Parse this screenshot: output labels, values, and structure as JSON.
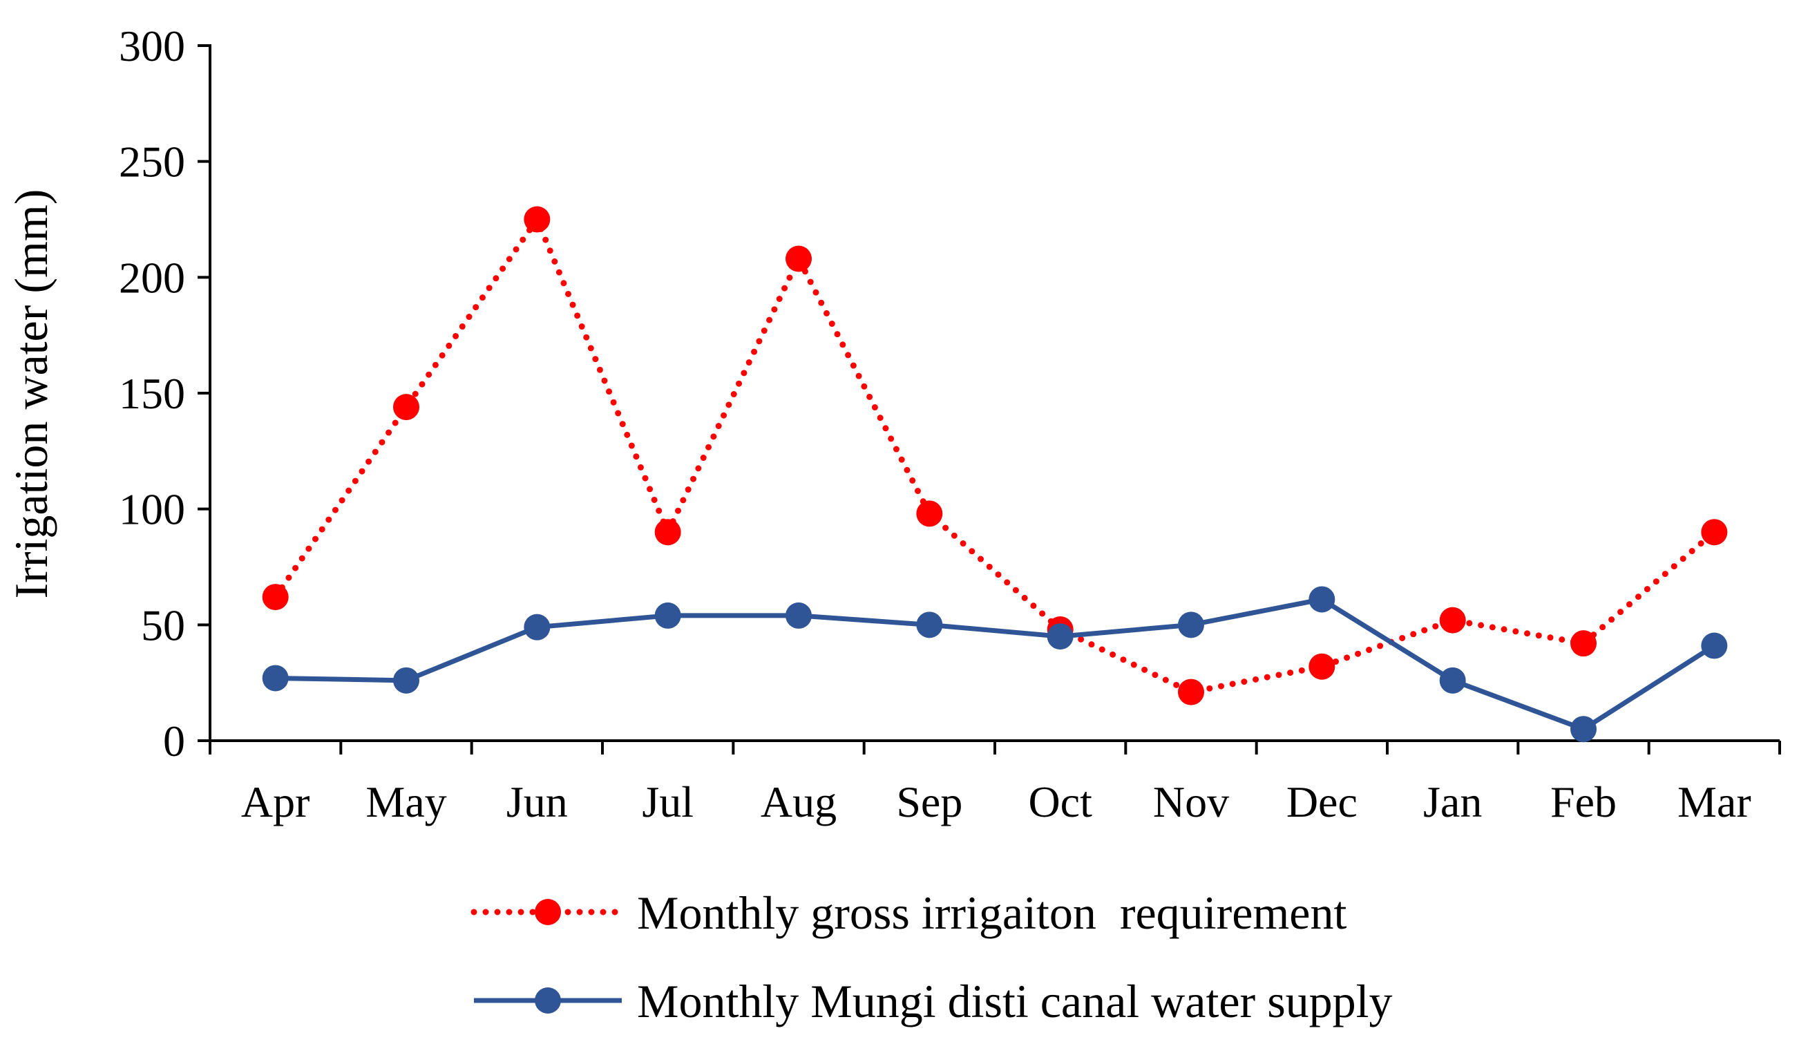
{
  "chart_data": {
    "type": "line",
    "title": "",
    "xlabel": "",
    "ylabel": "Irrigation water (mm)",
    "ylim": [
      0,
      300
    ],
    "yticks": [
      0,
      50,
      100,
      150,
      200,
      250,
      300
    ],
    "categories": [
      "Apr",
      "May",
      "Jun",
      "Jul",
      "Aug",
      "Sep",
      "Oct",
      "Nov",
      "Dec",
      "Jan",
      "Feb",
      "Mar"
    ],
    "grid": false,
    "legend_position": "bottom",
    "series": [
      {
        "name": "Monthly gross irrigaiton  requirement",
        "color": "#ff0000",
        "line_style": "dotted",
        "marker": "circle",
        "values": [
          62,
          144,
          225,
          90,
          208,
          98,
          48,
          21,
          32,
          52,
          42,
          90
        ]
      },
      {
        "name": "Monthly Mungi disti canal water supply",
        "color": "#2f5597",
        "line_style": "solid",
        "marker": "circle",
        "values": [
          27,
          26,
          49,
          54,
          54,
          50,
          45,
          50,
          61,
          26,
          5,
          41
        ]
      }
    ]
  }
}
